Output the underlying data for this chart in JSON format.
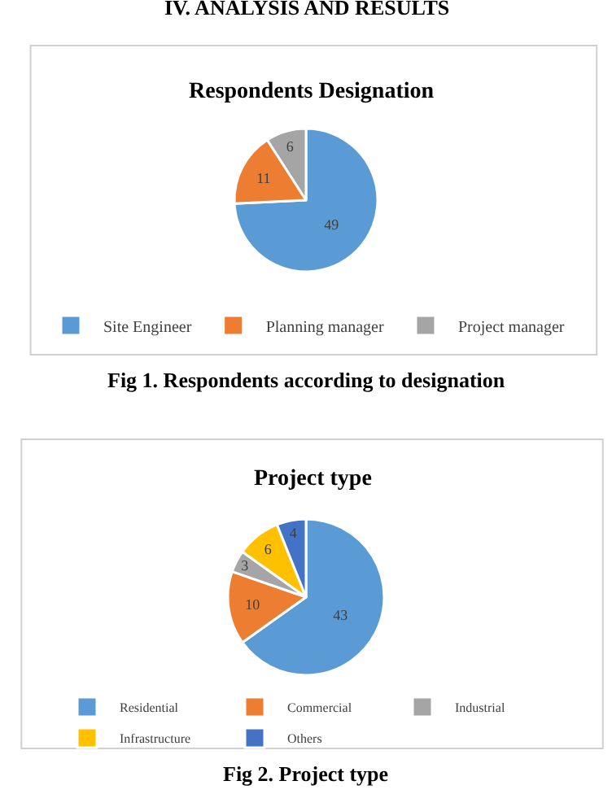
{
  "chart_data": [
    {
      "type": "pie",
      "title": "Respondents Designation",
      "categories": [
        "Site Engineer",
        "Planning manager",
        "Project manager"
      ],
      "values": [
        49,
        11,
        6
      ],
      "colors": [
        "#5b9bd5",
        "#ed7d31",
        "#a5a5a5"
      ],
      "data_labels": true,
      "legend": "bottom",
      "annotations": [
        "IV. ANALYSIS AND RESULTS",
        "Fig 1. Respondents according to designation"
      ]
    },
    {
      "type": "pie",
      "title": "Project type",
      "categories": [
        "Residential",
        "Commercial",
        "Industrial",
        "Infrastructure",
        "Others"
      ],
      "values": [
        43,
        10,
        3,
        6,
        4
      ],
      "colors": [
        "#5b9bd5",
        "#ed7d31",
        "#a5a5a5",
        "#ffc000",
        "#4472c4"
      ],
      "data_labels": true,
      "legend": "bottom",
      "annotations": [
        "Fig 2. Project type"
      ]
    }
  ]
}
